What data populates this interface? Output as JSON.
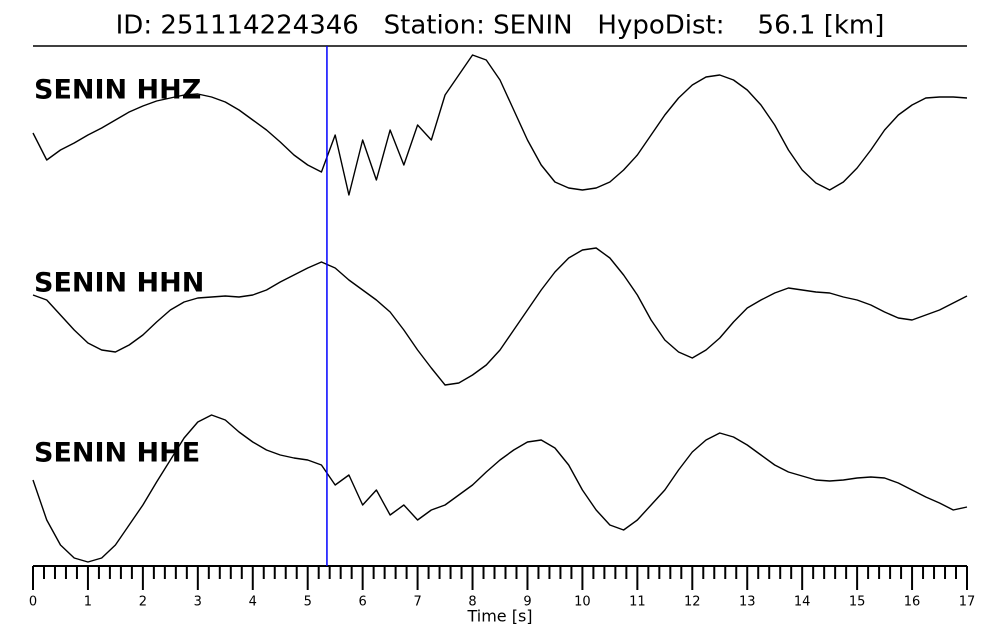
{
  "chart_data": {
    "type": "line",
    "title": "ID: 251114224346   Station: SENIN   HypoDist:    56.1 [km]",
    "xlabel": "Time [s]",
    "x": [
      0,
      0.25,
      0.5,
      0.75,
      1,
      1.25,
      1.5,
      1.75,
      2,
      2.25,
      2.5,
      2.75,
      3,
      3.25,
      3.5,
      3.75,
      4,
      4.25,
      4.5,
      4.75,
      5,
      5.25,
      5.5,
      5.75,
      6,
      6.25,
      6.5,
      6.75,
      7,
      7.25,
      7.5,
      7.75,
      8,
      8.25,
      8.5,
      8.75,
      9,
      9.25,
      9.5,
      9.75,
      10,
      10.25,
      10.5,
      10.75,
      11,
      11.25,
      11.5,
      11.75,
      12,
      12.25,
      12.5,
      12.75,
      13,
      13.25,
      13.5,
      13.75,
      14,
      14.25,
      14.5,
      14.75,
      15,
      15.25,
      15.5,
      15.75,
      16,
      16.25,
      16.5,
      16.75,
      17
    ],
    "series": [
      {
        "name": "SENIN HHZ",
        "color": "#000000",
        "values": [
          -8,
          -35,
          -25,
          -18,
          -10,
          -3,
          5,
          13,
          19,
          24,
          27,
          30,
          31,
          28,
          23,
          15,
          5,
          -5,
          -17,
          -30,
          -40,
          -47,
          -10,
          -70,
          -15,
          -55,
          -5,
          -40,
          0,
          -15,
          30,
          50,
          70,
          65,
          45,
          15,
          -15,
          -40,
          -57,
          -63,
          -65,
          -63,
          -57,
          -45,
          -30,
          -10,
          10,
          27,
          40,
          48,
          50,
          45,
          35,
          20,
          0,
          -25,
          -45,
          -58,
          -65,
          -57,
          -43,
          -25,
          -5,
          10,
          20,
          27,
          28,
          28,
          27
        ]
      },
      {
        "name": "SENIN HHN",
        "color": "#000000",
        "values": [
          23,
          18,
          3,
          -12,
          -25,
          -32,
          -34,
          -27,
          -17,
          -4,
          8,
          16,
          20,
          21,
          22,
          21,
          23,
          28,
          36,
          43,
          50,
          56,
          50,
          38,
          28,
          18,
          6,
          -12,
          -32,
          -50,
          -67,
          -65,
          -57,
          -47,
          -32,
          -12,
          8,
          28,
          46,
          60,
          68,
          70,
          60,
          43,
          23,
          -2,
          -22,
          -34,
          -40,
          -32,
          -20,
          -4,
          10,
          18,
          25,
          30,
          28,
          26,
          25,
          21,
          18,
          13,
          6,
          0,
          -2,
          3,
          8,
          15,
          22
        ]
      },
      {
        "name": "SENIN HHE",
        "color": "#000000",
        "values": [
          8,
          -32,
          -57,
          -70,
          -74,
          -70,
          -57,
          -37,
          -17,
          6,
          28,
          50,
          66,
          73,
          68,
          56,
          46,
          38,
          33,
          30,
          28,
          23,
          3,
          13,
          -17,
          -2,
          -27,
          -17,
          -32,
          -22,
          -17,
          -7,
          3,
          16,
          28,
          38,
          46,
          48,
          40,
          23,
          -2,
          -22,
          -37,
          -42,
          -32,
          -17,
          -2,
          18,
          36,
          48,
          55,
          51,
          43,
          33,
          23,
          16,
          12,
          8,
          7,
          8,
          10,
          11,
          10,
          5,
          -2,
          -9,
          -15,
          -22,
          -19
        ]
      }
    ],
    "label_color": "#4e9a06",
    "xlim": [
      0,
      17
    ],
    "ylim": [
      -80,
      80
    ],
    "xticks": [
      0,
      1,
      2,
      3,
      4,
      5,
      6,
      7,
      8,
      9,
      10,
      11,
      12,
      13,
      14,
      15,
      16,
      17
    ],
    "xminorticks": [
      0.2,
      0.4,
      0.6,
      0.8,
      1.2,
      1.4,
      1.6,
      1.8,
      2.2,
      2.4,
      2.6,
      2.8,
      3.2,
      3.4,
      3.6,
      3.8,
      4.2,
      4.4,
      4.6,
      4.8,
      5.2,
      5.4,
      5.6,
      5.8,
      6.2,
      6.4,
      6.6,
      6.8,
      7.2,
      7.4,
      7.6,
      7.8,
      8.2,
      8.4,
      8.6,
      8.8,
      9.2,
      9.4,
      9.6,
      9.8,
      10.2,
      10.4,
      10.6,
      10.8,
      11.2,
      11.4,
      11.6,
      11.8,
      12.2,
      12.4,
      12.6,
      12.8,
      13.2,
      13.4,
      13.6,
      13.8,
      14.2,
      14.4,
      14.6,
      14.8,
      15.2,
      15.4,
      15.6,
      15.8,
      16.2,
      16.4,
      16.6,
      16.8
    ],
    "vline": {
      "x": 5.35,
      "color": "#0000ff"
    }
  }
}
